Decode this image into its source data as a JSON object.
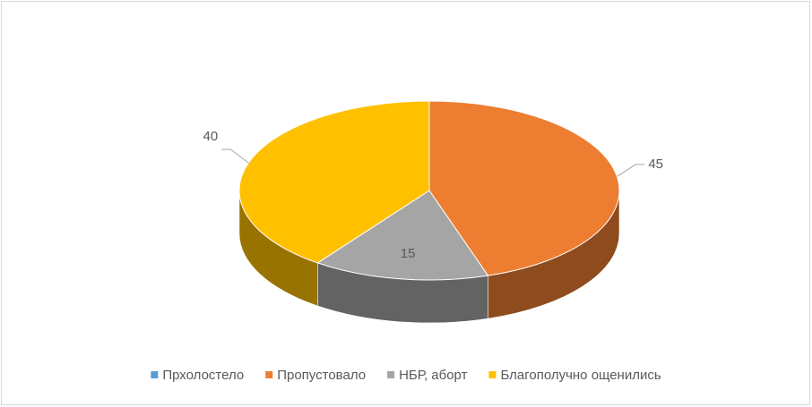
{
  "chart_data": {
    "type": "pie",
    "categories": [
      "Прхолостело",
      "Пропустовало",
      "НБР, аборт",
      "Благополучно ощенились"
    ],
    "values": [
      0,
      45,
      15,
      40
    ],
    "colors": [
      "#5b9bd5",
      "#ed7d31",
      "#a5a5a5",
      "#ffc000"
    ],
    "legend": "bottom"
  }
}
